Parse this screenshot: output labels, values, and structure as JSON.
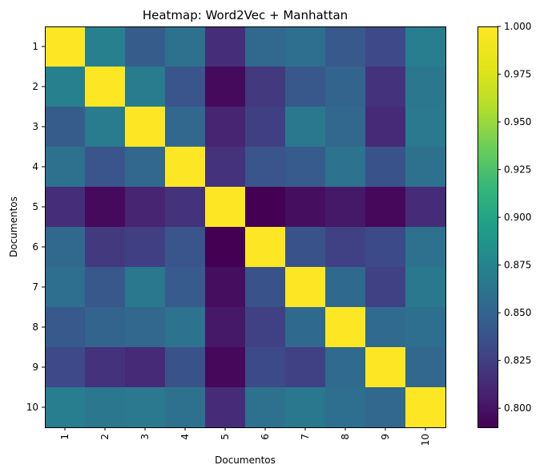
{
  "chart_data": {
    "type": "heatmap",
    "title": "Heatmap: Word2Vec + Manhattan",
    "xlabel": "Documentos",
    "ylabel": "Documentos",
    "x_categories": [
      "1",
      "2",
      "3",
      "4",
      "5",
      "6",
      "7",
      "8",
      "9",
      "10"
    ],
    "y_categories": [
      "1",
      "2",
      "3",
      "4",
      "5",
      "6",
      "7",
      "8",
      "9",
      "10"
    ],
    "values": [
      [
        1.0,
        0.872,
        0.845,
        0.86,
        0.815,
        0.853,
        0.858,
        0.843,
        0.832,
        0.87
      ],
      [
        0.872,
        1.0,
        0.868,
        0.84,
        0.795,
        0.822,
        0.842,
        0.85,
        0.818,
        0.865
      ],
      [
        0.845,
        0.868,
        1.0,
        0.852,
        0.81,
        0.826,
        0.866,
        0.852,
        0.813,
        0.867
      ],
      [
        0.86,
        0.84,
        0.852,
        1.0,
        0.818,
        0.84,
        0.844,
        0.861,
        0.838,
        0.86
      ],
      [
        0.815,
        0.795,
        0.81,
        0.818,
        1.0,
        0.79,
        0.797,
        0.803,
        0.794,
        0.814
      ],
      [
        0.853,
        0.822,
        0.826,
        0.84,
        0.79,
        1.0,
        0.838,
        0.827,
        0.833,
        0.86
      ],
      [
        0.858,
        0.842,
        0.866,
        0.844,
        0.797,
        0.838,
        1.0,
        0.854,
        0.827,
        0.866
      ],
      [
        0.843,
        0.85,
        0.852,
        0.861,
        0.803,
        0.827,
        0.854,
        1.0,
        0.855,
        0.858
      ],
      [
        0.832,
        0.818,
        0.813,
        0.838,
        0.794,
        0.833,
        0.827,
        0.855,
        1.0,
        0.852
      ],
      [
        0.87,
        0.865,
        0.867,
        0.86,
        0.814,
        0.86,
        0.866,
        0.858,
        0.852,
        1.0
      ]
    ],
    "colormap": "viridis",
    "color_range": [
      0.79,
      1.0
    ],
    "colorbar_ticks": [
      "0.800",
      "0.825",
      "0.850",
      "0.875",
      "0.900",
      "0.925",
      "0.950",
      "0.975",
      "1.000"
    ],
    "colorbar_tick_values": [
      0.8,
      0.825,
      0.85,
      0.875,
      0.9,
      0.925,
      0.95,
      0.975,
      1.0
    ],
    "grid": false
  }
}
